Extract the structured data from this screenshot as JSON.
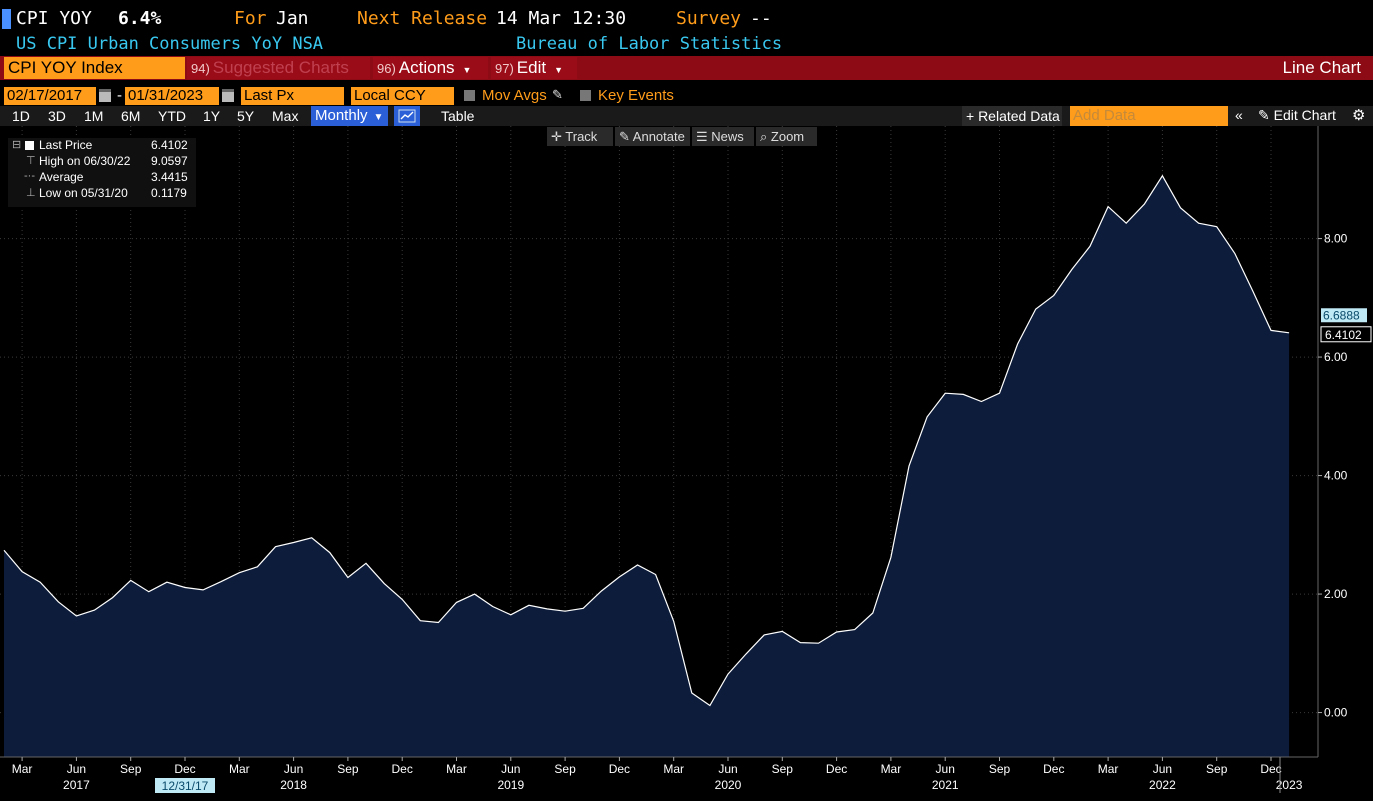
{
  "header": {
    "ticker": "CPI YOY",
    "value": "6.4%",
    "for_label": "For",
    "for_value": "Jan",
    "next_release_label": "Next Release",
    "next_release_value": "14 Mar 12:30",
    "survey_label": "Survey",
    "survey_value": "--",
    "description": "US CPI Urban Consumers YoY NSA",
    "source": "Bureau of Labor Statistics"
  },
  "toolbar": {
    "security": "CPI YOY Index",
    "suggested_num": "94)",
    "suggested_label": "Suggested Charts",
    "actions_num": "96)",
    "actions_label": "Actions",
    "edit_num": "97)",
    "edit_label": "Edit",
    "chart_type": "Line Chart",
    "start_date": "02/17/2017",
    "end_date": "01/31/2023",
    "date_sep": "-",
    "price_field": "Last Px",
    "currency": "Local CCY",
    "mov_avgs": "Mov Avgs",
    "key_events": "Key Events"
  },
  "periods": [
    "1D",
    "3D",
    "1M",
    "6M",
    "YTD",
    "1Y",
    "5Y",
    "Max"
  ],
  "frequency": "Monthly",
  "table_label": "Table",
  "related_label": "+ Related Data",
  "add_data_placeholder": "Add Data",
  "edit_chart_label": "Edit Chart",
  "tools": [
    "Track",
    "Annotate",
    "News",
    "Zoom"
  ],
  "legend": {
    "rows": [
      {
        "label": "Last Price",
        "value": "6.4102"
      },
      {
        "label": "High on 06/30/22",
        "value": "9.0597"
      },
      {
        "label": "Average",
        "value": "3.4415"
      },
      {
        "label": "Low on 05/31/20",
        "value": "0.1179"
      }
    ]
  },
  "colors": {
    "accent": "#ff9c1a",
    "bar_red": "#8c0b14",
    "link_blue": "#39c8f0",
    "area_fill": "#0c1c3a",
    "line": "#ffffff"
  },
  "chart_data": {
    "type": "area",
    "series": [
      {
        "name": "Last Price",
        "x": [
          "2017-02",
          "2017-03",
          "2017-04",
          "2017-05",
          "2017-06",
          "2017-07",
          "2017-08",
          "2017-09",
          "2017-10",
          "2017-11",
          "2017-12",
          "2018-01",
          "2018-02",
          "2018-03",
          "2018-04",
          "2018-05",
          "2018-06",
          "2018-07",
          "2018-08",
          "2018-09",
          "2018-10",
          "2018-11",
          "2018-12",
          "2019-01",
          "2019-02",
          "2019-03",
          "2019-04",
          "2019-05",
          "2019-06",
          "2019-07",
          "2019-08",
          "2019-09",
          "2019-10",
          "2019-11",
          "2019-12",
          "2020-01",
          "2020-02",
          "2020-03",
          "2020-04",
          "2020-05",
          "2020-06",
          "2020-07",
          "2020-08",
          "2020-09",
          "2020-10",
          "2020-11",
          "2020-12",
          "2021-01",
          "2021-02",
          "2021-03",
          "2021-04",
          "2021-05",
          "2021-06",
          "2021-07",
          "2021-08",
          "2021-09",
          "2021-10",
          "2021-11",
          "2021-12",
          "2022-01",
          "2022-02",
          "2022-03",
          "2022-04",
          "2022-05",
          "2022-06",
          "2022-07",
          "2022-08",
          "2022-09",
          "2022-10",
          "2022-11",
          "2022-12",
          "2023-01"
        ],
        "values": [
          2.74,
          2.38,
          2.2,
          1.87,
          1.63,
          1.73,
          1.94,
          2.23,
          2.04,
          2.2,
          2.11,
          2.07,
          2.21,
          2.36,
          2.46,
          2.8,
          2.87,
          2.95,
          2.7,
          2.28,
          2.52,
          2.18,
          1.91,
          1.55,
          1.52,
          1.86,
          2.0,
          1.79,
          1.65,
          1.81,
          1.75,
          1.71,
          1.76,
          2.05,
          2.29,
          2.49,
          2.33,
          1.54,
          0.33,
          0.12,
          0.65,
          0.99,
          1.31,
          1.37,
          1.18,
          1.17,
          1.36,
          1.4,
          1.68,
          2.62,
          4.16,
          4.99,
          5.39,
          5.37,
          5.25,
          5.39,
          6.22,
          6.81,
          7.04,
          7.48,
          7.87,
          8.54,
          8.26,
          8.58,
          9.06,
          8.52,
          8.26,
          8.2,
          7.75,
          7.11,
          6.45,
          6.41
        ]
      }
    ],
    "last_value_label": "6.4102",
    "reference_value": 6.6888,
    "reference_label": "6.6888",
    "ylim": [
      -0.75,
      9.9
    ],
    "yticks": [
      0,
      2,
      4,
      6,
      8
    ],
    "ytick_labels": [
      "0.00",
      "2.00",
      "4.00",
      "6.00",
      "8.00"
    ],
    "xticks": [
      {
        "x": "2017-03",
        "label": "Mar"
      },
      {
        "x": "2017-06",
        "label": "Jun"
      },
      {
        "x": "2017-09",
        "label": "Sep"
      },
      {
        "x": "2017-12",
        "label": "Dec"
      },
      {
        "x": "2018-03",
        "label": "Mar"
      },
      {
        "x": "2018-06",
        "label": "Jun"
      },
      {
        "x": "2018-09",
        "label": "Sep"
      },
      {
        "x": "2018-12",
        "label": "Dec"
      },
      {
        "x": "2019-03",
        "label": "Mar"
      },
      {
        "x": "2019-06",
        "label": "Jun"
      },
      {
        "x": "2019-09",
        "label": "Sep"
      },
      {
        "x": "2019-12",
        "label": "Dec"
      },
      {
        "x": "2020-03",
        "label": "Mar"
      },
      {
        "x": "2020-06",
        "label": "Jun"
      },
      {
        "x": "2020-09",
        "label": "Sep"
      },
      {
        "x": "2020-12",
        "label": "Dec"
      },
      {
        "x": "2021-03",
        "label": "Mar"
      },
      {
        "x": "2021-06",
        "label": "Jun"
      },
      {
        "x": "2021-09",
        "label": "Sep"
      },
      {
        "x": "2021-12",
        "label": "Dec"
      },
      {
        "x": "2022-03",
        "label": "Mar"
      },
      {
        "x": "2022-06",
        "label": "Jun"
      },
      {
        "x": "2022-09",
        "label": "Sep"
      },
      {
        "x": "2022-12",
        "label": "Dec"
      }
    ],
    "year_labels": [
      {
        "x": "2017-06",
        "label": "2017"
      },
      {
        "x": "2018-06",
        "label": "2018"
      },
      {
        "x": "2019-06",
        "label": "2019"
      },
      {
        "x": "2020-06",
        "label": "2020"
      },
      {
        "x": "2021-06",
        "label": "2021"
      },
      {
        "x": "2022-06",
        "label": "2022"
      },
      {
        "x": "2023-01",
        "label": "2023"
      }
    ],
    "cursor_label": {
      "x": "2017-12",
      "label": "12/31/17"
    },
    "grid": true
  }
}
